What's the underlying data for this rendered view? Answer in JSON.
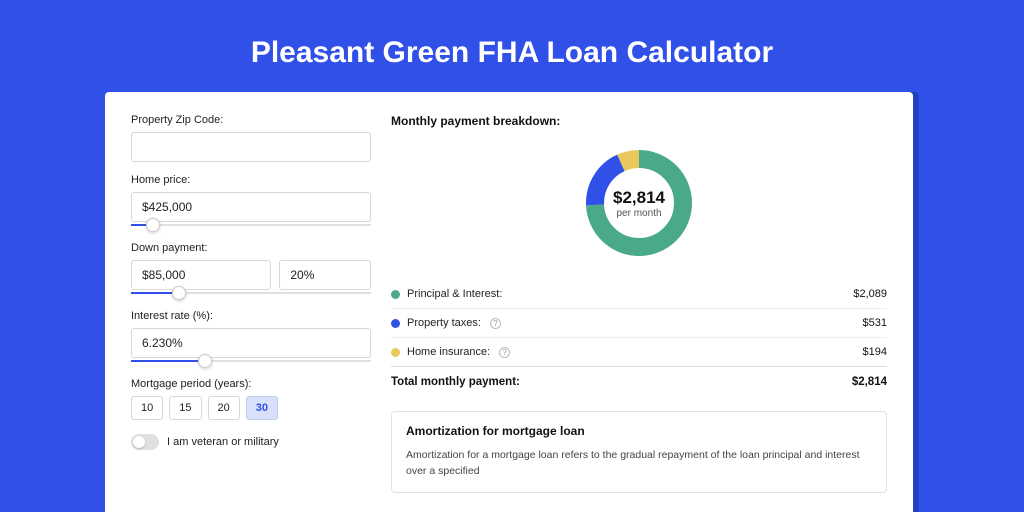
{
  "title": "Pleasant Green FHA Loan Calculator",
  "colors": {
    "page_bg": "#3050e8",
    "card_bg": "#ffffff",
    "accent": "#3050e8"
  },
  "form": {
    "zip": {
      "label": "Property Zip Code:",
      "value": ""
    },
    "home_price": {
      "label": "Home price:",
      "value": "$425,000",
      "slider_pct": 9
    },
    "down_payment": {
      "label": "Down payment:",
      "amount": "$85,000",
      "pct": "20%",
      "slider_pct": 20
    },
    "interest_rate": {
      "label": "Interest rate (%):",
      "value": "6.230%",
      "slider_pct": 31
    },
    "mortgage_period": {
      "label": "Mortgage period (years):",
      "options": [
        "10",
        "15",
        "20",
        "30"
      ],
      "selected": "30"
    },
    "veteran": {
      "label": "I am veteran or military",
      "checked": false
    }
  },
  "breakdown": {
    "title": "Monthly payment breakdown:",
    "center_amount": "$2,814",
    "center_sub": "per month",
    "donut": {
      "type": "donut",
      "circumference": 276.46,
      "stroke_width": 18,
      "radius": 44,
      "slices": [
        {
          "key": "pi",
          "label": "Principal & Interest:",
          "value": "$2,089",
          "color": "#4aa986",
          "fraction": 0.742
        },
        {
          "key": "tax",
          "label": "Property taxes:",
          "value": "$531",
          "color": "#3050e8",
          "fraction": 0.189
        },
        {
          "key": "ins",
          "label": "Home insurance:",
          "value": "$194",
          "color": "#e9c85c",
          "fraction": 0.069
        }
      ]
    },
    "total": {
      "label": "Total monthly payment:",
      "value": "$2,814"
    }
  },
  "amortization": {
    "title": "Amortization for mortgage loan",
    "text": "Amortization for a mortgage loan refers to the gradual repayment of the loan principal and interest over a specified"
  }
}
